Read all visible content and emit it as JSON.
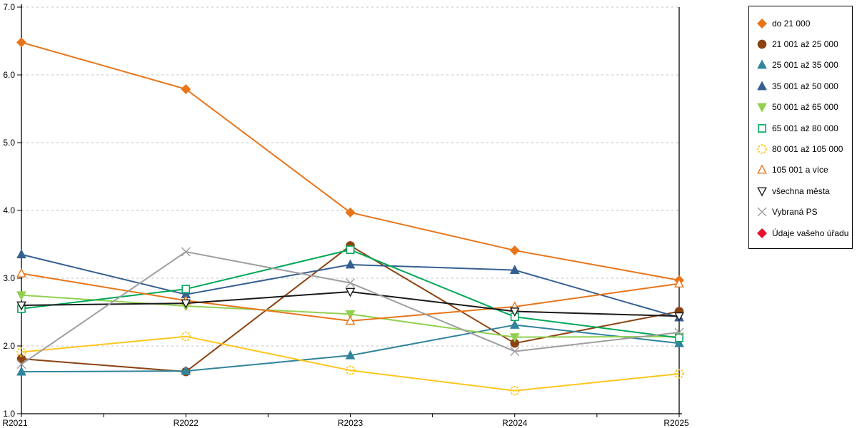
{
  "chart_data": {
    "type": "line",
    "title": "",
    "xlabel": "",
    "ylabel": "",
    "categories": [
      "R2021",
      "R2022",
      "R2023",
      "R2024",
      "R2025"
    ],
    "ylim": [
      1.0,
      7.0
    ],
    "y_tick_step": 1.0,
    "grid": "dashed-horizontal",
    "legend_position": "top-right",
    "gridline_color": "#bfbfbf",
    "axis_color": "#000000",
    "series": [
      {
        "name": "do 21 000",
        "color": "#e8751a",
        "marker": "diamond",
        "fill": true,
        "values": [
          6.48,
          5.79,
          3.97,
          3.41,
          2.97
        ]
      },
      {
        "name": "21 001 až 25 000",
        "color": "#8c4313",
        "marker": "circle",
        "fill": true,
        "values": [
          1.81,
          1.62,
          3.48,
          2.04,
          2.51
        ]
      },
      {
        "name": "25 001 až 35 000",
        "color": "#31849b",
        "marker": "triangle-up",
        "fill": true,
        "values": [
          1.62,
          1.63,
          1.86,
          2.31,
          2.04
        ]
      },
      {
        "name": "35 001 až 50 000",
        "color": "#365f91",
        "marker": "triangle-up",
        "fill": true,
        "values": [
          3.35,
          2.76,
          3.2,
          3.12,
          2.42
        ]
      },
      {
        "name": "50 001 až 65 000",
        "color": "#92d050",
        "marker": "triangle-down",
        "fill": true,
        "values": [
          2.75,
          2.59,
          2.47,
          2.13,
          2.14
        ]
      },
      {
        "name": "65 001 až 80 000",
        "color": "#00a859",
        "marker": "square",
        "fill": false,
        "values": [
          2.55,
          2.84,
          3.42,
          2.43,
          2.12
        ]
      },
      {
        "name": "80 001 až 105 000",
        "color": "#ffc61e",
        "marker": "circle-dashed",
        "fill": false,
        "values": [
          1.91,
          2.14,
          1.64,
          1.34,
          1.59
        ]
      },
      {
        "name": "105 001 a více",
        "color": "#e8751a",
        "marker": "triangle-up",
        "fill": false,
        "values": [
          3.07,
          2.67,
          2.37,
          2.58,
          2.92
        ]
      },
      {
        "name": "všechna města",
        "color": "#1a1a1a",
        "marker": "triangle-down",
        "fill": false,
        "values": [
          2.6,
          2.63,
          2.8,
          2.51,
          2.44
        ]
      },
      {
        "name": "Vybraná PS",
        "color": "#9e9e9e",
        "marker": "x",
        "fill": false,
        "values": [
          1.73,
          3.39,
          2.93,
          1.92,
          2.2
        ]
      },
      {
        "name": "Údaje vašeho úřadu",
        "color": "#e8112a",
        "marker": "diamond",
        "fill": true,
        "values": []
      }
    ]
  }
}
